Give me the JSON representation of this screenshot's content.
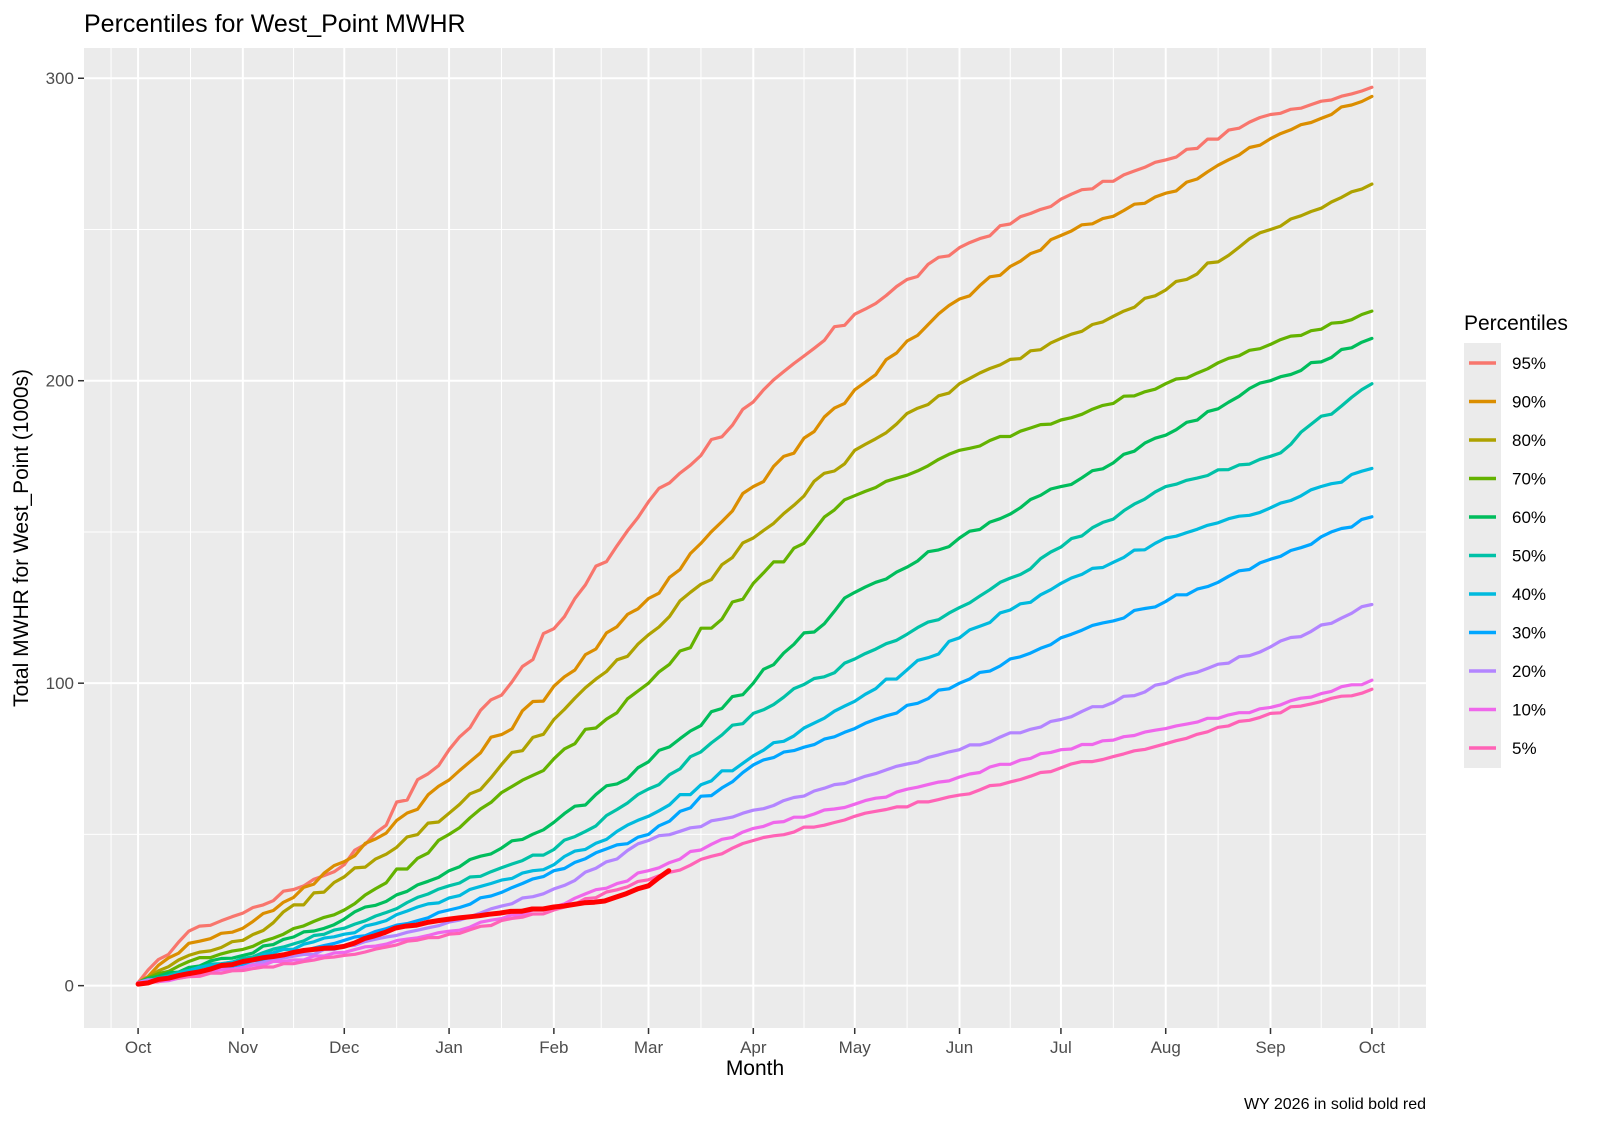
{
  "chart_data": {
    "type": "line",
    "title": "Percentiles for West_Point MWHR",
    "xlabel": "Month",
    "ylabel": "Total MWHR for West_Point  (1000s)",
    "caption": "WY 2026 in solid  bold red",
    "x_ticks": [
      {
        "label": "Oct",
        "x": 0
      },
      {
        "label": "Nov",
        "x": 31
      },
      {
        "label": "Dec",
        "x": 61
      },
      {
        "label": "Jan",
        "x": 92
      },
      {
        "label": "Feb",
        "x": 123
      },
      {
        "label": "Mar",
        "x": 151
      },
      {
        "label": "Apr",
        "x": 182
      },
      {
        "label": "May",
        "x": 212
      },
      {
        "label": "Jun",
        "x": 243
      },
      {
        "label": "Jul",
        "x": 273
      },
      {
        "label": "Aug",
        "x": 304
      },
      {
        "label": "Sep",
        "x": 335
      },
      {
        "label": "Oct",
        "x": 365
      }
    ],
    "xlim": [
      -16,
      381
    ],
    "ylim": [
      -14,
      310
    ],
    "y_ticks": [
      0,
      100,
      200,
      300
    ],
    "y_tick_labels": [
      "0",
      "100",
      "200",
      "300"
    ],
    "grid": true,
    "legend": {
      "title": "Percentiles",
      "position": "right"
    },
    "series": [
      {
        "name": "95%",
        "color": "#F8766D",
        "x": [
          0,
          15,
          31,
          61,
          92,
          123,
          151,
          182,
          212,
          243,
          273,
          304,
          335,
          365
        ],
        "y": [
          1,
          18,
          24,
          40,
          78,
          118,
          160,
          193,
          222,
          244,
          260,
          273,
          288,
          297
        ]
      },
      {
        "name": "90%",
        "color": "#DB8E00",
        "x": [
          0,
          15,
          31,
          61,
          92,
          123,
          151,
          182,
          212,
          243,
          273,
          304,
          335,
          365
        ],
        "y": [
          1,
          14,
          19,
          41,
          68,
          99,
          128,
          165,
          197,
          227,
          248,
          262,
          280,
          294
        ]
      },
      {
        "name": "80%",
        "color": "#AEA200",
        "x": [
          0,
          15,
          31,
          61,
          92,
          123,
          151,
          182,
          212,
          243,
          273,
          304,
          335,
          365
        ],
        "y": [
          1,
          10,
          15,
          36,
          57,
          88,
          116,
          148,
          177,
          199,
          214,
          230,
          250,
          265
        ]
      },
      {
        "name": "70%",
        "color": "#64B200",
        "x": [
          0,
          15,
          31,
          61,
          92,
          123,
          151,
          182,
          212,
          243,
          273,
          304,
          335,
          365
        ],
        "y": [
          1,
          8,
          12,
          25,
          50,
          75,
          100,
          133,
          162,
          177,
          187,
          199,
          212,
          223
        ]
      },
      {
        "name": "60%",
        "color": "#00BD5C",
        "x": [
          0,
          15,
          31,
          61,
          92,
          123,
          151,
          182,
          212,
          243,
          273,
          304,
          335,
          365
        ],
        "y": [
          1,
          6,
          10,
          22,
          38,
          54,
          74,
          100,
          130,
          148,
          165,
          182,
          200,
          214
        ]
      },
      {
        "name": "50%",
        "color": "#00C1A7",
        "x": [
          0,
          15,
          31,
          61,
          92,
          123,
          151,
          182,
          212,
          243,
          273,
          304,
          335,
          365
        ],
        "y": [
          1,
          5,
          9,
          19,
          33,
          45,
          65,
          90,
          108,
          125,
          145,
          165,
          175,
          199
        ]
      },
      {
        "name": "40%",
        "color": "#00BADE",
        "x": [
          0,
          15,
          31,
          61,
          92,
          123,
          151,
          182,
          212,
          243,
          273,
          304,
          335,
          365
        ],
        "y": [
          1,
          5,
          8,
          17,
          29,
          40,
          56,
          76,
          94,
          115,
          133,
          148,
          158,
          171
        ]
      },
      {
        "name": "30%",
        "color": "#00A6FF",
        "x": [
          0,
          15,
          31,
          61,
          92,
          123,
          151,
          182,
          212,
          243,
          273,
          304,
          335,
          365
        ],
        "y": [
          1,
          4,
          7,
          15,
          25,
          38,
          50,
          73,
          85,
          100,
          115,
          127,
          141,
          155
        ]
      },
      {
        "name": "20%",
        "color": "#B385FF",
        "x": [
          0,
          15,
          31,
          61,
          92,
          123,
          151,
          182,
          212,
          243,
          273,
          304,
          335,
          365
        ],
        "y": [
          1,
          4,
          6,
          13,
          21,
          32,
          48,
          58,
          68,
          78,
          88,
          100,
          112,
          126
        ]
      },
      {
        "name": "10%",
        "color": "#EF67EB",
        "x": [
          0,
          15,
          31,
          61,
          92,
          123,
          151,
          182,
          212,
          243,
          273,
          304,
          335,
          365
        ],
        "y": [
          1,
          3,
          6,
          11,
          18,
          26,
          38,
          52,
          60,
          69,
          78,
          85,
          92,
          101
        ]
      },
      {
        "name": " 5%",
        "color": "#FF63B6",
        "x": [
          0,
          15,
          31,
          61,
          92,
          123,
          151,
          182,
          212,
          243,
          273,
          304,
          335,
          365
        ],
        "y": [
          1,
          3,
          5,
          10,
          17,
          25,
          35,
          48,
          56,
          63,
          72,
          80,
          90,
          98
        ]
      }
    ],
    "highlight": {
      "color": "#FF0000",
      "x": [
        0,
        15,
        31,
        46,
        61,
        76,
        92,
        107,
        123,
        138,
        151,
        157
      ],
      "y": [
        0.5,
        4,
        8,
        11,
        13,
        19,
        22,
        24,
        26,
        28,
        33,
        38
      ]
    }
  }
}
